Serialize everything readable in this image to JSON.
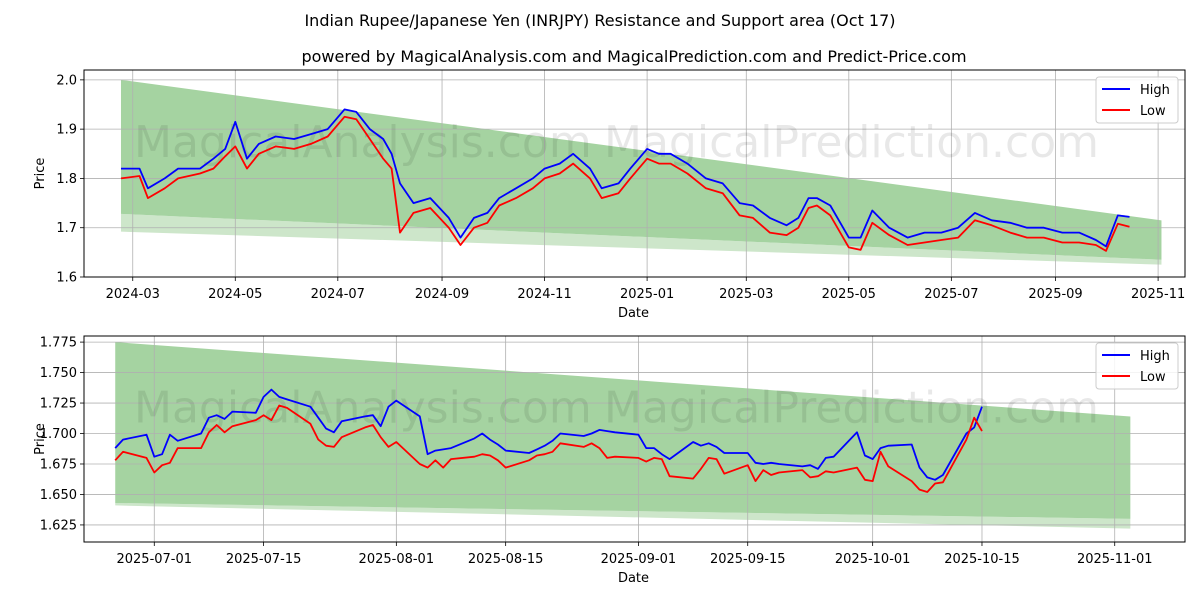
{
  "title": "Indian Rupee/Japanese Yen (INRJPY) Resistance and Support area (Oct 17)",
  "subtitle": "powered by MagicalAnalysis.com and MagicalPrediction.com and Predict-Price.com",
  "watermarks": [
    "MagicalAnalysis.com",
    "MagicalPrediction.com"
  ],
  "colors": {
    "high": "#0000ff",
    "low": "#ff0000",
    "band": "#a5d3a1",
    "band_light": "#cde6ca",
    "grid": "#b0b0b0"
  },
  "chart_data": [
    {
      "type": "line",
      "xlabel": "Date",
      "ylabel": "Price",
      "xlim": [
        "2024-02-01",
        "2025-11-17"
      ],
      "ylim": [
        1.6,
        2.02
      ],
      "yticks": [
        "1.6",
        "1.7",
        "1.8",
        "1.9",
        "2.0"
      ],
      "xticks": [
        "2024-03",
        "2024-05",
        "2024-07",
        "2024-09",
        "2024-11",
        "2025-01",
        "2025-03",
        "2025-05",
        "2025-07",
        "2025-09",
        "2025-11"
      ],
      "legend": [
        "High",
        "Low"
      ],
      "legend_position": "top-right",
      "band": {
        "start": "2024-02-23",
        "end": "2025-11-03",
        "upper": [
          2.0,
          1.715
        ],
        "lower": [
          1.728,
          1.635
        ],
        "faint_lower": [
          1.692,
          1.625
        ]
      },
      "series": [
        {
          "name": "High",
          "dates": [
            "2024-02-23",
            "2024-03-05",
            "2024-03-10",
            "2024-03-20",
            "2024-03-28",
            "2024-04-10",
            "2024-04-18",
            "2024-04-25",
            "2024-05-01",
            "2024-05-08",
            "2024-05-15",
            "2024-05-25",
            "2024-06-05",
            "2024-06-15",
            "2024-06-25",
            "2024-07-05",
            "2024-07-12",
            "2024-07-20",
            "2024-07-28",
            "2024-08-02",
            "2024-08-07",
            "2024-08-15",
            "2024-08-25",
            "2024-09-05",
            "2024-09-12",
            "2024-09-20",
            "2024-09-28",
            "2024-10-05",
            "2024-10-15",
            "2024-10-25",
            "2024-11-01",
            "2024-11-10",
            "2024-11-18",
            "2024-11-28",
            "2024-12-05",
            "2024-12-15",
            "2024-12-22",
            "2025-01-01",
            "2025-01-08",
            "2025-01-15",
            "2025-01-25",
            "2025-02-05",
            "2025-02-15",
            "2025-02-25",
            "2025-03-05",
            "2025-03-15",
            "2025-03-25",
            "2025-04-01",
            "2025-04-07",
            "2025-04-12",
            "2025-04-20",
            "2025-05-01",
            "2025-05-08",
            "2025-05-15",
            "2025-05-25",
            "2025-06-05",
            "2025-06-15",
            "2025-06-25",
            "2025-07-05",
            "2025-07-15",
            "2025-07-25",
            "2025-08-05",
            "2025-08-15",
            "2025-08-25",
            "2025-09-05",
            "2025-09-15",
            "2025-09-25",
            "2025-10-01",
            "2025-10-08",
            "2025-10-15"
          ],
          "values": [
            1.82,
            1.82,
            1.78,
            1.8,
            1.82,
            1.82,
            1.84,
            1.86,
            1.915,
            1.84,
            1.87,
            1.885,
            1.88,
            1.89,
            1.9,
            1.94,
            1.935,
            1.9,
            1.88,
            1.85,
            1.79,
            1.75,
            1.76,
            1.72,
            1.68,
            1.72,
            1.73,
            1.76,
            1.78,
            1.8,
            1.82,
            1.83,
            1.85,
            1.82,
            1.78,
            1.79,
            1.82,
            1.86,
            1.85,
            1.85,
            1.83,
            1.8,
            1.79,
            1.75,
            1.745,
            1.72,
            1.705,
            1.72,
            1.76,
            1.76,
            1.745,
            1.68,
            1.68,
            1.735,
            1.7,
            1.68,
            1.69,
            1.69,
            1.7,
            1.73,
            1.715,
            1.71,
            1.7,
            1.7,
            1.69,
            1.69,
            1.675,
            1.662,
            1.725,
            1.722
          ]
        },
        {
          "name": "Low",
          "dates": [
            "2024-02-23",
            "2024-03-05",
            "2024-03-10",
            "2024-03-20",
            "2024-03-28",
            "2024-04-10",
            "2024-04-18",
            "2024-04-25",
            "2024-05-01",
            "2024-05-08",
            "2024-05-15",
            "2024-05-25",
            "2024-06-05",
            "2024-06-15",
            "2024-06-25",
            "2024-07-05",
            "2024-07-12",
            "2024-07-20",
            "2024-07-28",
            "2024-08-02",
            "2024-08-07",
            "2024-08-15",
            "2024-08-25",
            "2024-09-05",
            "2024-09-12",
            "2024-09-20",
            "2024-09-28",
            "2024-10-05",
            "2024-10-15",
            "2024-10-25",
            "2024-11-01",
            "2024-11-10",
            "2024-11-18",
            "2024-11-28",
            "2024-12-05",
            "2024-12-15",
            "2024-12-22",
            "2025-01-01",
            "2025-01-08",
            "2025-01-15",
            "2025-01-25",
            "2025-02-05",
            "2025-02-15",
            "2025-02-25",
            "2025-03-05",
            "2025-03-15",
            "2025-03-25",
            "2025-04-01",
            "2025-04-07",
            "2025-04-12",
            "2025-04-20",
            "2025-05-01",
            "2025-05-08",
            "2025-05-15",
            "2025-05-25",
            "2025-06-05",
            "2025-06-15",
            "2025-06-25",
            "2025-07-05",
            "2025-07-15",
            "2025-07-25",
            "2025-08-05",
            "2025-08-15",
            "2025-08-25",
            "2025-09-05",
            "2025-09-15",
            "2025-09-25",
            "2025-10-01",
            "2025-10-08",
            "2025-10-15"
          ],
          "values": [
            1.8,
            1.805,
            1.76,
            1.78,
            1.8,
            1.81,
            1.82,
            1.845,
            1.865,
            1.82,
            1.85,
            1.865,
            1.86,
            1.87,
            1.885,
            1.925,
            1.92,
            1.88,
            1.84,
            1.82,
            1.69,
            1.73,
            1.74,
            1.7,
            1.665,
            1.7,
            1.71,
            1.745,
            1.76,
            1.78,
            1.8,
            1.81,
            1.83,
            1.8,
            1.76,
            1.77,
            1.8,
            1.84,
            1.83,
            1.83,
            1.81,
            1.78,
            1.77,
            1.725,
            1.72,
            1.69,
            1.685,
            1.7,
            1.74,
            1.745,
            1.725,
            1.66,
            1.655,
            1.71,
            1.685,
            1.665,
            1.67,
            1.675,
            1.68,
            1.715,
            1.705,
            1.69,
            1.68,
            1.68,
            1.67,
            1.67,
            1.665,
            1.653,
            1.708,
            1.702
          ]
        }
      ]
    },
    {
      "type": "line",
      "xlabel": "Date",
      "ylabel": "Price",
      "xlim": [
        "2025-06-22",
        "2025-11-10"
      ],
      "ylim": [
        1.611,
        1.78
      ],
      "yticks": [
        "1.625",
        "1.650",
        "1.675",
        "1.700",
        "1.725",
        "1.750",
        "1.775"
      ],
      "xticks": [
        "2025-07-01",
        "2025-07-15",
        "2025-08-01",
        "2025-08-15",
        "2025-09-01",
        "2025-09-15",
        "2025-10-01",
        "2025-10-15",
        "2025-11-01"
      ],
      "legend": [
        "High",
        "Low"
      ],
      "legend_position": "top-right",
      "band": {
        "start": "2025-06-26",
        "end": "2025-11-03",
        "upper": [
          1.775,
          1.714
        ],
        "lower": [
          1.643,
          1.63
        ],
        "faint_lower": [
          1.641,
          1.622
        ]
      },
      "series": [
        {
          "name": "High",
          "dates": [
            "2025-06-26",
            "2025-06-27",
            "2025-06-30",
            "2025-07-01",
            "2025-07-02",
            "2025-07-03",
            "2025-07-04",
            "2025-07-07",
            "2025-07-08",
            "2025-07-09",
            "2025-07-10",
            "2025-07-11",
            "2025-07-14",
            "2025-07-15",
            "2025-07-16",
            "2025-07-17",
            "2025-07-18",
            "2025-07-21",
            "2025-07-22",
            "2025-07-23",
            "2025-07-24",
            "2025-07-25",
            "2025-07-28",
            "2025-07-29",
            "2025-07-30",
            "2025-07-31",
            "2025-08-01",
            "2025-08-04",
            "2025-08-05",
            "2025-08-06",
            "2025-08-07",
            "2025-08-08",
            "2025-08-11",
            "2025-08-12",
            "2025-08-13",
            "2025-08-14",
            "2025-08-15",
            "2025-08-18",
            "2025-08-19",
            "2025-08-20",
            "2025-08-21",
            "2025-08-22",
            "2025-08-25",
            "2025-08-26",
            "2025-08-27",
            "2025-08-28",
            "2025-08-29",
            "2025-09-01",
            "2025-09-02",
            "2025-09-03",
            "2025-09-04",
            "2025-09-05",
            "2025-09-08",
            "2025-09-09",
            "2025-09-10",
            "2025-09-11",
            "2025-09-12",
            "2025-09-15",
            "2025-09-16",
            "2025-09-17",
            "2025-09-18",
            "2025-09-19",
            "2025-09-22",
            "2025-09-23",
            "2025-09-24",
            "2025-09-25",
            "2025-09-26",
            "2025-09-29",
            "2025-09-30",
            "2025-10-01",
            "2025-10-02",
            "2025-10-03",
            "2025-10-06",
            "2025-10-07",
            "2025-10-08",
            "2025-10-09",
            "2025-10-10",
            "2025-10-13",
            "2025-10-14",
            "2025-10-15"
          ],
          "values": [
            1.688,
            1.695,
            1.699,
            1.681,
            1.683,
            1.699,
            1.694,
            1.7,
            1.713,
            1.715,
            1.712,
            1.718,
            1.717,
            1.73,
            1.736,
            1.73,
            1.728,
            1.722,
            1.713,
            1.704,
            1.701,
            1.71,
            1.714,
            1.715,
            1.706,
            1.722,
            1.727,
            1.714,
            1.683,
            1.686,
            1.687,
            1.688,
            1.696,
            1.7,
            1.695,
            1.691,
            1.686,
            1.684,
            1.687,
            1.69,
            1.694,
            1.7,
            1.698,
            1.7,
            1.703,
            1.702,
            1.701,
            1.699,
            1.688,
            1.688,
            1.683,
            1.679,
            1.693,
            1.69,
            1.692,
            1.689,
            1.684,
            1.684,
            1.676,
            1.675,
            1.676,
            1.675,
            1.673,
            1.674,
            1.671,
            1.68,
            1.681,
            1.701,
            1.682,
            1.679,
            1.688,
            1.69,
            1.691,
            1.672,
            1.664,
            1.662,
            1.666,
            1.7,
            1.705,
            1.722
          ]
        },
        {
          "name": "Low",
          "dates": [
            "2025-06-26",
            "2025-06-27",
            "2025-06-30",
            "2025-07-01",
            "2025-07-02",
            "2025-07-03",
            "2025-07-04",
            "2025-07-07",
            "2025-07-08",
            "2025-07-09",
            "2025-07-10",
            "2025-07-11",
            "2025-07-14",
            "2025-07-15",
            "2025-07-16",
            "2025-07-17",
            "2025-07-18",
            "2025-07-21",
            "2025-07-22",
            "2025-07-23",
            "2025-07-24",
            "2025-07-25",
            "2025-07-28",
            "2025-07-29",
            "2025-07-30",
            "2025-07-31",
            "2025-08-01",
            "2025-08-04",
            "2025-08-05",
            "2025-08-06",
            "2025-08-07",
            "2025-08-08",
            "2025-08-11",
            "2025-08-12",
            "2025-08-13",
            "2025-08-14",
            "2025-08-15",
            "2025-08-18",
            "2025-08-19",
            "2025-08-20",
            "2025-08-21",
            "2025-08-22",
            "2025-08-25",
            "2025-08-26",
            "2025-08-27",
            "2025-08-28",
            "2025-08-29",
            "2025-09-01",
            "2025-09-02",
            "2025-09-03",
            "2025-09-04",
            "2025-09-05",
            "2025-09-08",
            "2025-09-09",
            "2025-09-10",
            "2025-09-11",
            "2025-09-12",
            "2025-09-15",
            "2025-09-16",
            "2025-09-17",
            "2025-09-18",
            "2025-09-19",
            "2025-09-22",
            "2025-09-23",
            "2025-09-24",
            "2025-09-25",
            "2025-09-26",
            "2025-09-29",
            "2025-09-30",
            "2025-10-01",
            "2025-10-02",
            "2025-10-03",
            "2025-10-06",
            "2025-10-07",
            "2025-10-08",
            "2025-10-09",
            "2025-10-10",
            "2025-10-13",
            "2025-10-14",
            "2025-10-15"
          ],
          "values": [
            1.678,
            1.685,
            1.68,
            1.668,
            1.674,
            1.676,
            1.688,
            1.688,
            1.701,
            1.707,
            1.701,
            1.706,
            1.711,
            1.715,
            1.711,
            1.723,
            1.721,
            1.708,
            1.695,
            1.69,
            1.689,
            1.697,
            1.705,
            1.707,
            1.697,
            1.689,
            1.693,
            1.675,
            1.672,
            1.678,
            1.672,
            1.679,
            1.681,
            1.683,
            1.682,
            1.678,
            1.672,
            1.678,
            1.682,
            1.683,
            1.685,
            1.692,
            1.689,
            1.692,
            1.688,
            1.68,
            1.681,
            1.68,
            1.677,
            1.68,
            1.679,
            1.665,
            1.663,
            1.671,
            1.68,
            1.679,
            1.667,
            1.674,
            1.661,
            1.67,
            1.666,
            1.668,
            1.67,
            1.664,
            1.665,
            1.669,
            1.668,
            1.672,
            1.662,
            1.661,
            1.685,
            1.673,
            1.661,
            1.654,
            1.652,
            1.659,
            1.66,
            1.695,
            1.713,
            1.702
          ]
        }
      ]
    }
  ]
}
